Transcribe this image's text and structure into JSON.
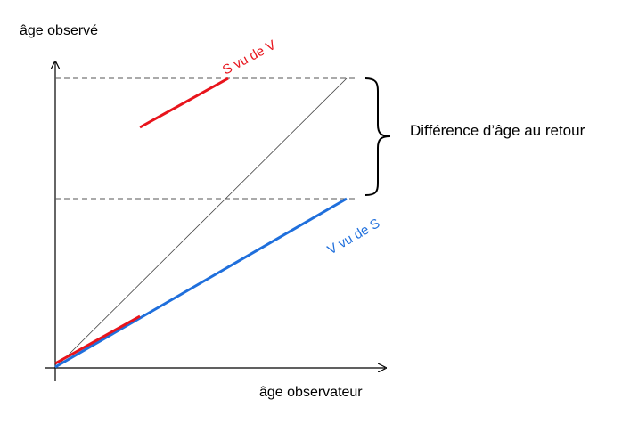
{
  "labels": {
    "y_axis": "âge observé",
    "x_axis": "âge observateur",
    "difference": "Différence d’âge au retour",
    "s_seen_by_v": "S vu de V",
    "v_seen_by_s": "V vu de S"
  },
  "colors": {
    "red": "#e8141c",
    "blue": "#1f6fdc",
    "axis": "#000000",
    "dashed": "#555555",
    "diagonal": "#444444"
  }
}
